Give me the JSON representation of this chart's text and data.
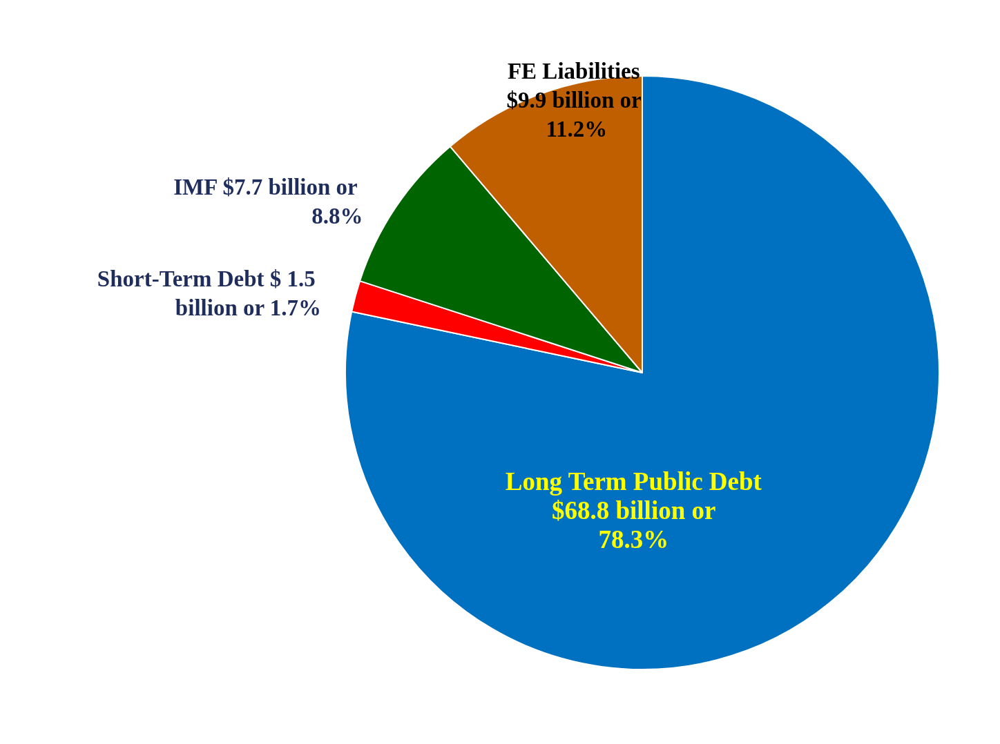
{
  "chart_data": {
    "type": "pie",
    "categories": [
      "Long Term Public Debt $68.8 billion or 78.3%",
      "Short-Term Debt $ 1.5 billion or 1.7%",
      "IMF $7.7 billion or 8.8%",
      "FE Liabilities $9.9 billion or 11.2%"
    ],
    "values": [
      78.3,
      1.7,
      8.8,
      11.2
    ],
    "colors": [
      "#0070c0",
      "#ff0000",
      "#006400",
      "#c05f00"
    ],
    "legend": false
  }
}
